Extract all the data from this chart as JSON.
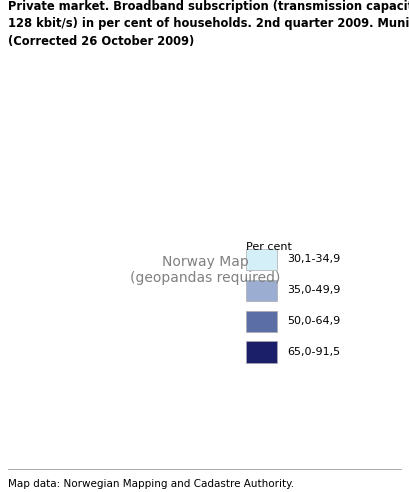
{
  "title_line1": "Private market. Broadband subscription (transmission capacity larger than",
  "title_line2": "128 kbit/s) in per cent of households. 2nd quarter 2009. Municipalities",
  "title_line3": "(Corrected 26 October 2009)",
  "footer": "Map data: Norwegian Mapping and Cadastre Authority.",
  "legend_title": "Per cent",
  "legend_items": [
    {
      "label": "30,1-34,9",
      "color": "#d4eff8"
    },
    {
      "label": "35,0-49,9",
      "color": "#9badd0"
    },
    {
      "label": "50,0-64,9",
      "color": "#5b6ea6"
    },
    {
      "label": "65,0-91,5",
      "color": "#1b1f6a"
    }
  ],
  "background_color": "#ffffff",
  "title_fontsize": 8.3,
  "footer_fontsize": 7.5,
  "legend_fontsize": 8.0,
  "separator_color": "#aaaaaa",
  "edge_color": "#c8c8d8",
  "edge_linewidth": 0.3
}
